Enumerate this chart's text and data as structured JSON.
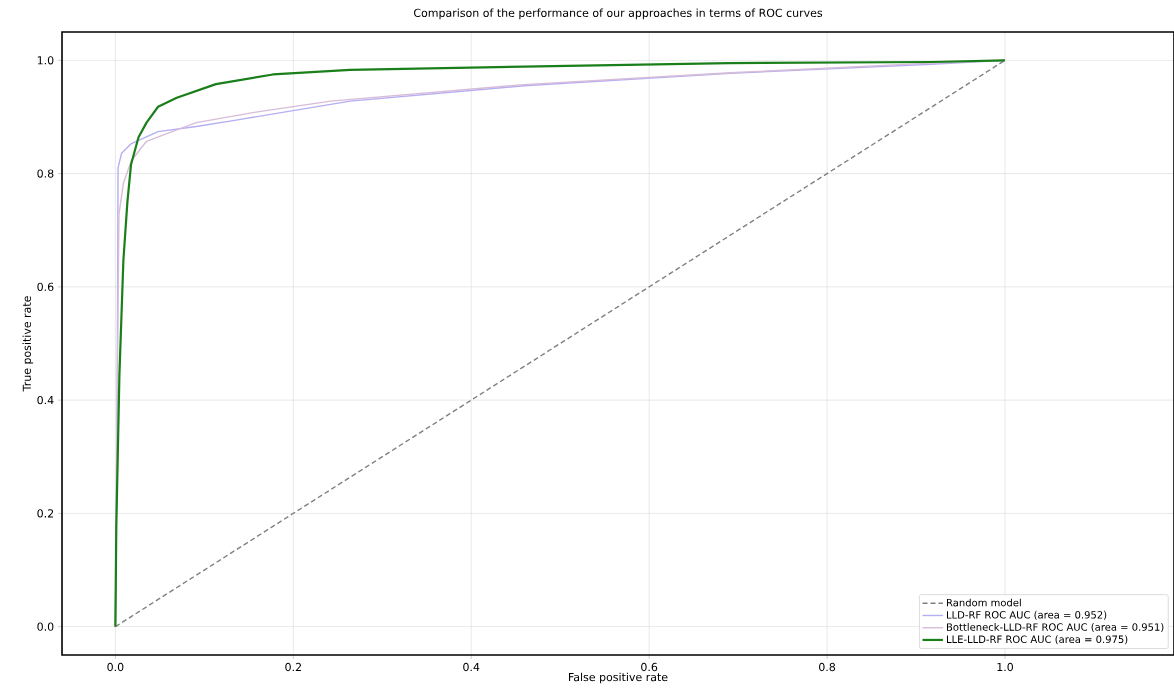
{
  "chart_data": {
    "type": "line",
    "title": "Comparison of the performance of our approaches in terms of ROC curves",
    "xlabel": "False positive rate",
    "ylabel": "True positive rate",
    "xlim": [
      -0.06,
      1.19
    ],
    "ylim": [
      -0.05,
      1.05
    ],
    "xticks": [
      {
        "value": 0,
        "label": "0.0"
      },
      {
        "value": 0.2,
        "label": "0.2"
      },
      {
        "value": 0.4,
        "label": "0.4"
      },
      {
        "value": 0.6,
        "label": "0.6"
      },
      {
        "value": 0.8,
        "label": "0.8"
      },
      {
        "value": 1,
        "label": "1.0"
      }
    ],
    "yticks": [
      {
        "value": 0,
        "label": "0.0"
      },
      {
        "value": 0.2,
        "label": "0.2"
      },
      {
        "value": 0.4,
        "label": "0.4"
      },
      {
        "value": 0.6,
        "label": "0.6"
      },
      {
        "value": 0.8,
        "label": "0.8"
      },
      {
        "value": 1,
        "label": "1.0"
      }
    ],
    "grid": true,
    "legend": "bottom right",
    "marker": "none",
    "series": [
      {
        "name": "Random model",
        "color": "#808080",
        "line_style": "dashed",
        "x": [
          0,
          1
        ],
        "values": [
          0,
          1
        ]
      },
      {
        "name": "LLD-RF ROC AUC (area = 0.952)",
        "color": "#b4aef2",
        "x": [
          0,
          0.002,
          0.003,
          0.007,
          0.018,
          0.048,
          0.091,
          0.134,
          0.199,
          0.264,
          0.459,
          0.691,
          0.917,
          1
        ],
        "values": [
          0,
          0.4,
          0.81,
          0.836,
          0.853,
          0.874,
          0.883,
          0.894,
          0.911,
          0.928,
          0.955,
          0.977,
          0.993,
          1
        ]
      },
      {
        "name": "Bottleneck-LLD-RF ROC AUC (area = 0.951)",
        "color": "#d8bcd8",
        "x": [
          0,
          0.002,
          0.004,
          0.009,
          0.018,
          0.035,
          0.069,
          0.091,
          0.156,
          0.242,
          0.459,
          0.691,
          0.917,
          1
        ],
        "values": [
          0,
          0.4,
          0.728,
          0.783,
          0.823,
          0.857,
          0.877,
          0.89,
          0.908,
          0.928,
          0.957,
          0.978,
          0.995,
          1
        ]
      },
      {
        "name": "LLE-LLD-RF ROC AUC (area = 0.975)",
        "color": "#1a7f1a",
        "x": [
          0,
          0.001,
          0.0045,
          0.009,
          0.0135,
          0.0176,
          0.026,
          0.035,
          0.048,
          0.069,
          0.113,
          0.177,
          0.264,
          0.459,
          0.69,
          0.917,
          1
        ],
        "values": [
          0,
          0.173,
          0.443,
          0.647,
          0.75,
          0.816,
          0.864,
          0.89,
          0.918,
          0.934,
          0.958,
          0.975,
          0.983,
          0.989,
          0.995,
          0.997,
          1
        ]
      }
    ]
  }
}
